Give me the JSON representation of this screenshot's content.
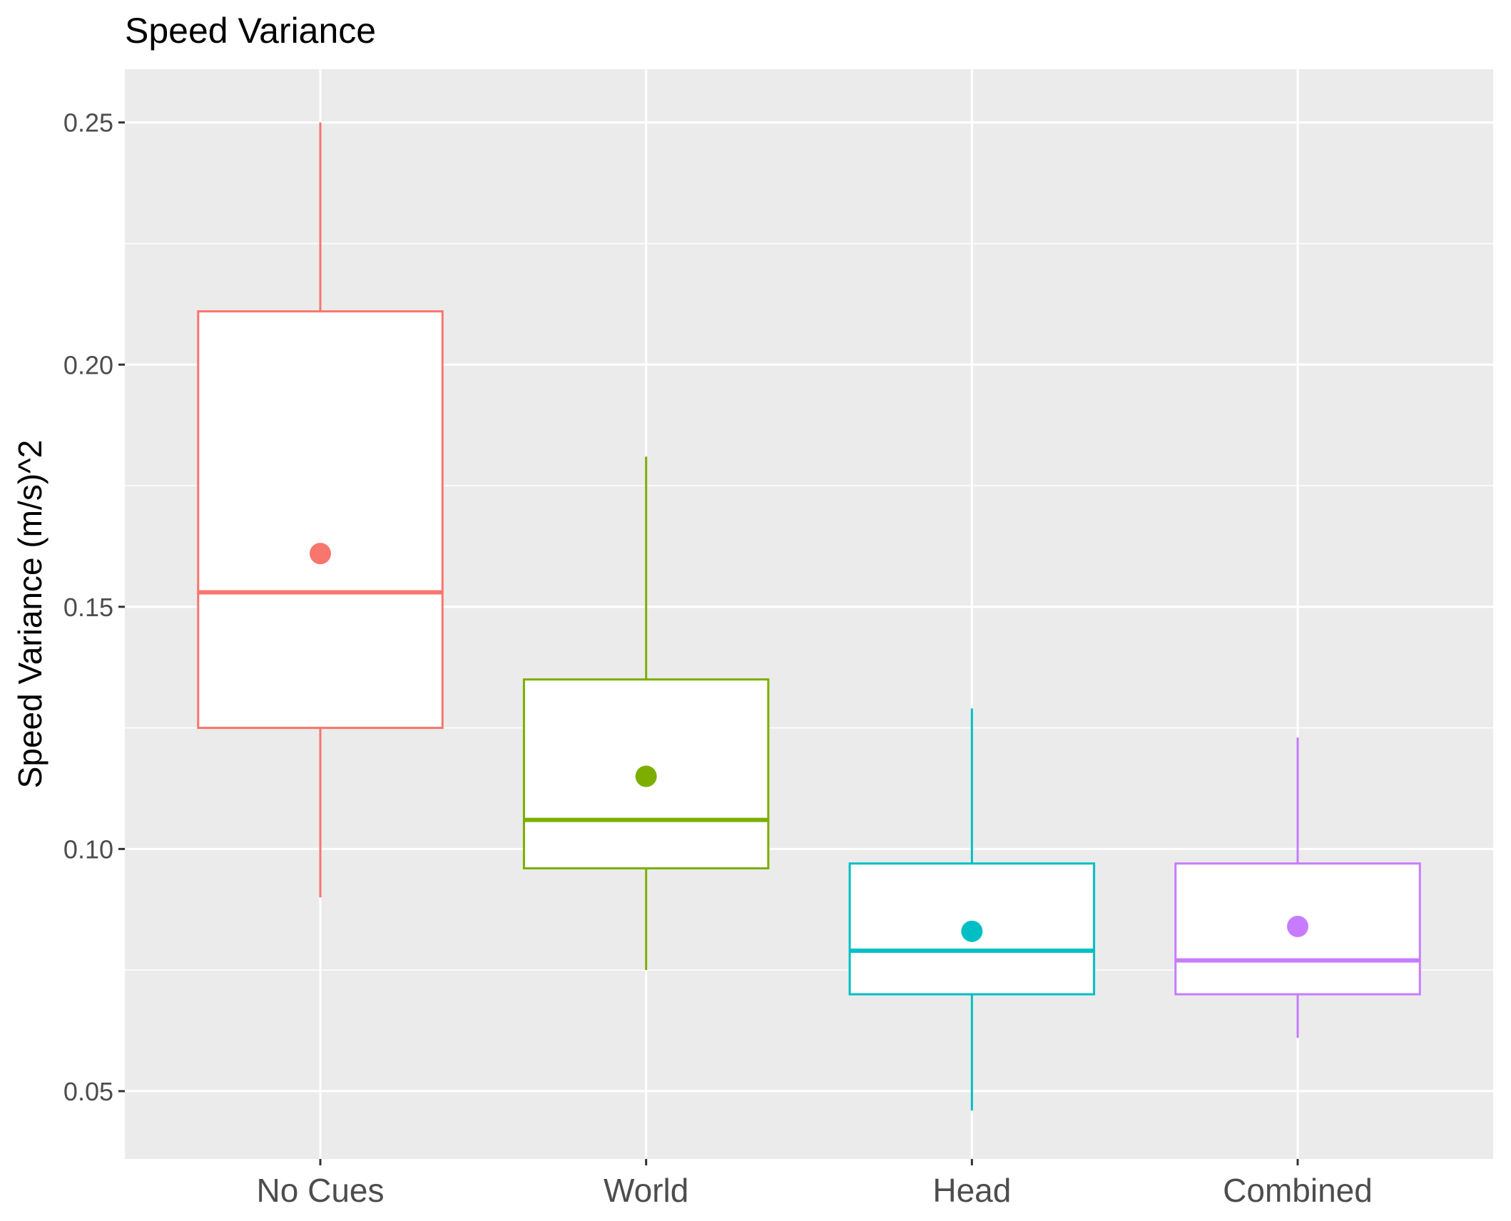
{
  "chart_data": {
    "type": "boxplot",
    "title": "Speed Variance",
    "xlabel": "",
    "ylabel": "Speed Variance (m/s)^2",
    "ylim": [
      0.036,
      0.261
    ],
    "yticks": [
      0.05,
      0.1,
      0.15,
      0.2,
      0.25
    ],
    "ytick_labels": [
      "0.05",
      "0.10",
      "0.15",
      "0.20",
      "0.25"
    ],
    "grid": true,
    "legend": "none",
    "categories": [
      "No Cues",
      "World",
      "Head",
      "Combined"
    ],
    "boxes": [
      {
        "category": "No Cues",
        "whisker_low": 0.09,
        "q1": 0.125,
        "median": 0.153,
        "q3": 0.211,
        "whisker_high": 0.25,
        "mean": 0.161,
        "color": "#F8766D"
      },
      {
        "category": "World",
        "whisker_low": 0.075,
        "q1": 0.096,
        "median": 0.106,
        "q3": 0.135,
        "whisker_high": 0.181,
        "mean": 0.115,
        "color": "#7CAE00"
      },
      {
        "category": "Head",
        "whisker_low": 0.046,
        "q1": 0.07,
        "median": 0.079,
        "q3": 0.097,
        "whisker_high": 0.129,
        "mean": 0.083,
        "color": "#00BFC4"
      },
      {
        "category": "Combined",
        "whisker_low": 0.061,
        "q1": 0.07,
        "median": 0.077,
        "q3": 0.097,
        "whisker_high": 0.123,
        "mean": 0.084,
        "color": "#C77CFF"
      }
    ],
    "panel_color": "#EBEBEB",
    "grid_color": "#FFFFFF"
  }
}
